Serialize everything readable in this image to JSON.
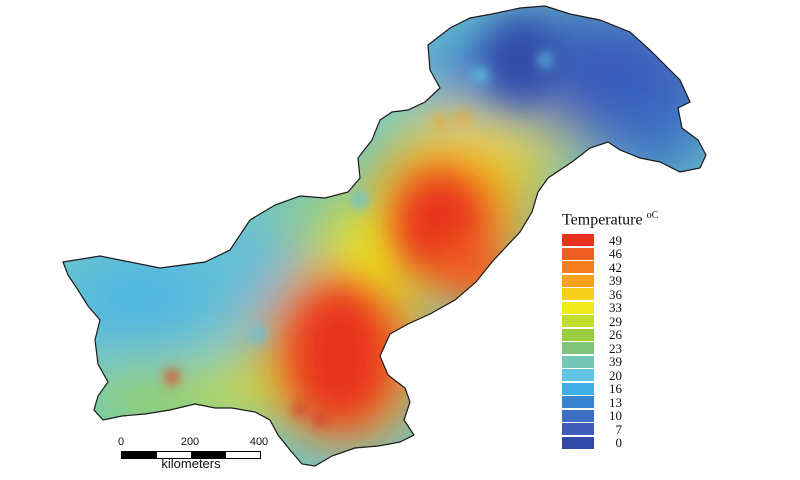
{
  "legend": {
    "title": "Temperature",
    "unit": "oC",
    "entries": [
      {
        "label": "49",
        "color": "#e8321e"
      },
      {
        "label": "46",
        "color": "#ef5d22"
      },
      {
        "label": "42",
        "color": "#f47d20"
      },
      {
        "label": "39",
        "color": "#f8a21a"
      },
      {
        "label": "36",
        "color": "#f7d01c"
      },
      {
        "label": "33",
        "color": "#eeea1e"
      },
      {
        "label": "29",
        "color": "#c2dd2a"
      },
      {
        "label": "26",
        "color": "#9bcd40"
      },
      {
        "label": "23",
        "color": "#7fc47a"
      },
      {
        "label": "39",
        "color": "#74c7b5"
      },
      {
        "label": "20",
        "color": "#5fc4e2"
      },
      {
        "label": "16",
        "color": "#3eaee4"
      },
      {
        "label": "13",
        "color": "#3983d0"
      },
      {
        "label": "10",
        "color": "#3e6fc4"
      },
      {
        "label": "7",
        "color": "#3f5cb8"
      },
      {
        "label": "0",
        "color": "#3349a8"
      }
    ]
  },
  "scalebar": {
    "ticks": [
      "0",
      "200",
      "400"
    ],
    "units": "kilometers"
  }
}
